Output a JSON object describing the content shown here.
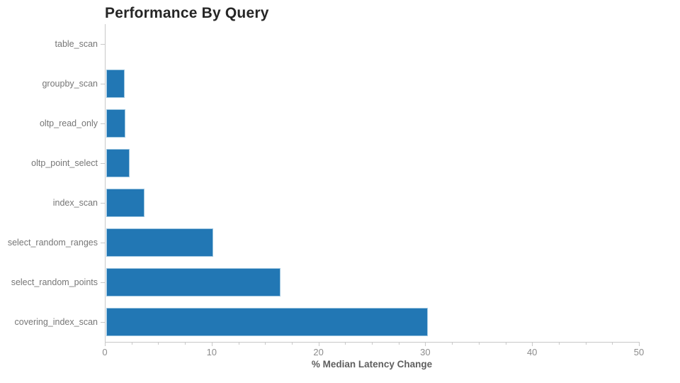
{
  "chart_data": {
    "type": "bar",
    "orientation": "horizontal",
    "title": "Performance By Query",
    "xlabel": "% Median Latency Change",
    "ylabel": "",
    "categories": [
      "table_scan",
      "groupby_scan",
      "oltp_read_only",
      "oltp_point_select",
      "index_scan",
      "select_random_ranges",
      "select_random_points",
      "covering_index_scan"
    ],
    "values": [
      0,
      1.7,
      1.8,
      2.2,
      3.6,
      10.0,
      16.3,
      30.1
    ],
    "xlim": [
      0,
      50
    ],
    "xticks": [
      0,
      10,
      20,
      30,
      40,
      50
    ],
    "minor_tick_step": 2.5,
    "grid": false,
    "legend": null,
    "colors": {
      "bar_fill": "#2277b4",
      "bar_edge": "#9dc6e0",
      "axis_line": "#c8c8c8",
      "category_label": "#767676",
      "tick_label": "#8c8c8c",
      "xlabel_text": "#5f5f5f",
      "title_text": "#262626",
      "background": "#ffffff"
    }
  }
}
